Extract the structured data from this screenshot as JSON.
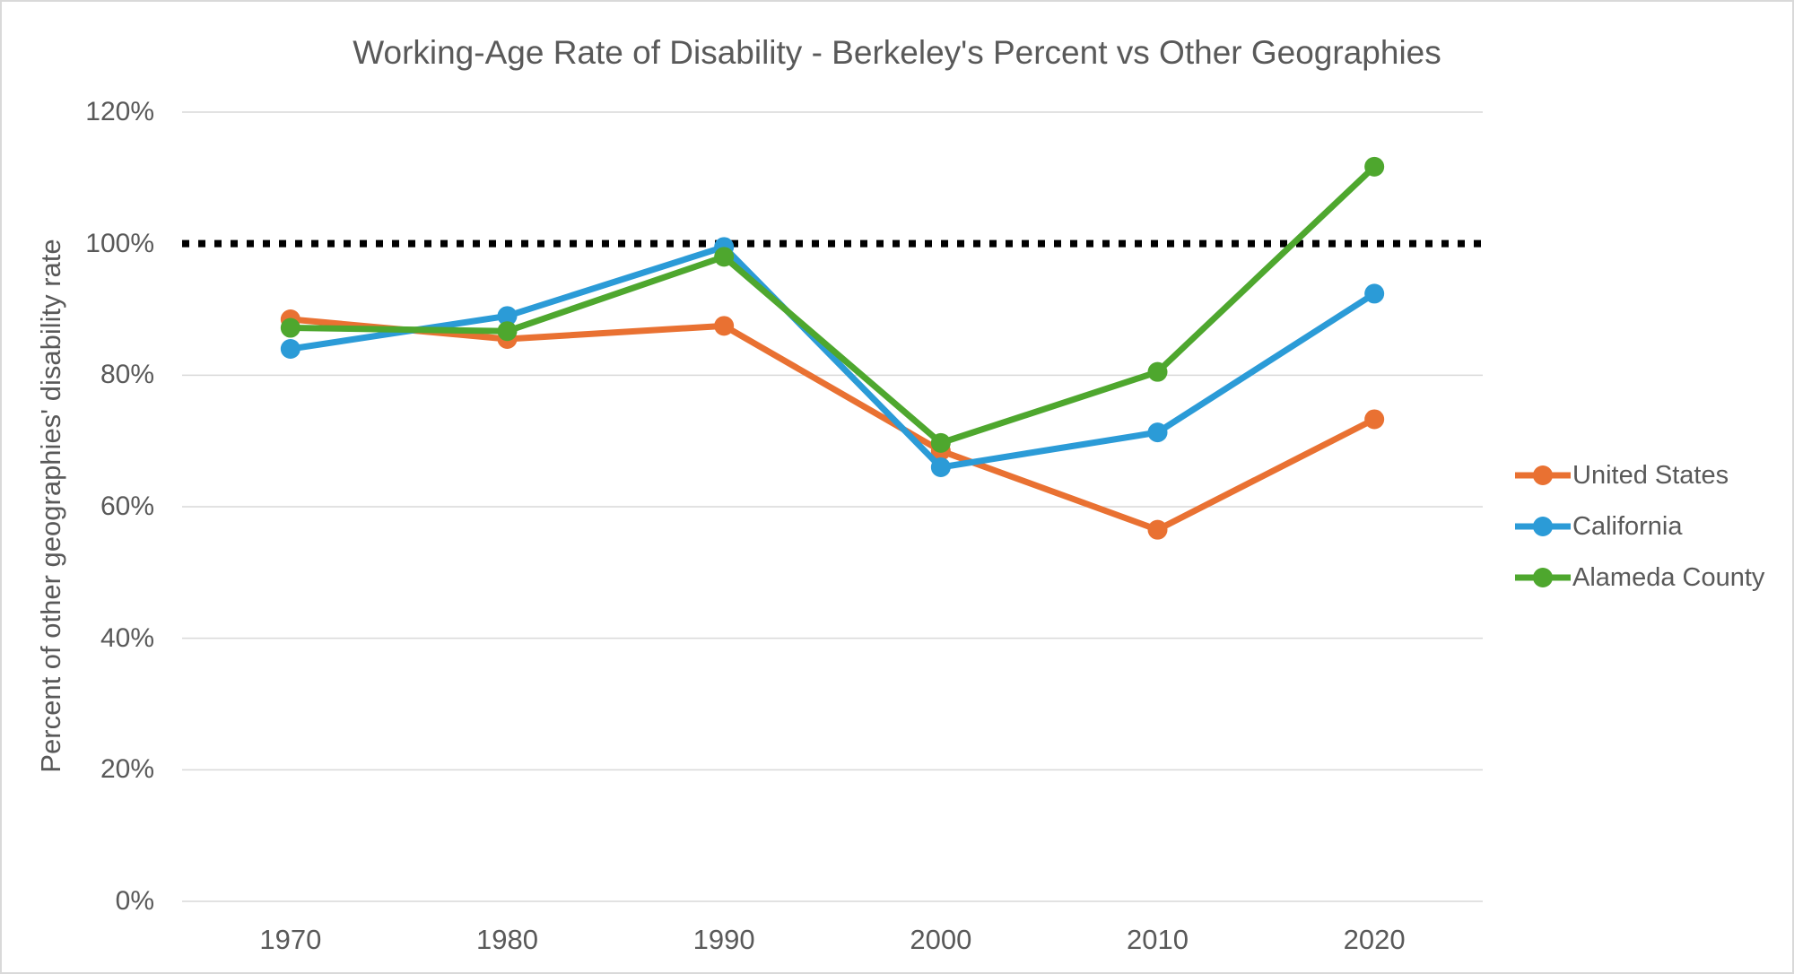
{
  "chart_data": {
    "type": "line",
    "title": "Working-Age Rate of Disability - Berkeley's Percent vs Other Geographies",
    "xlabel": "",
    "ylabel": "Percent of other geographies' disability rate",
    "categories": [
      "1970",
      "1980",
      "1990",
      "2000",
      "2010",
      "2020"
    ],
    "series": [
      {
        "name": "United States",
        "color": "#E97132",
        "values": [
          88.5,
          85.5,
          87.5,
          68.5,
          56.5,
          73.3
        ]
      },
      {
        "name": "California",
        "color": "#2B9BD7",
        "values": [
          84.0,
          89.0,
          99.5,
          66.0,
          71.3,
          92.4
        ]
      },
      {
        "name": "Alameda County",
        "color": "#4EA72E",
        "values": [
          87.2,
          86.7,
          98.0,
          69.7,
          80.5,
          111.7
        ]
      }
    ],
    "reference_line": {
      "value": 100,
      "style": "dotted",
      "color": "#000000"
    },
    "ylim": [
      0,
      120
    ],
    "yticks": [
      0,
      20,
      40,
      60,
      80,
      100,
      120
    ],
    "ytick_labels": [
      "0%",
      "20%",
      "40%",
      "60%",
      "80%",
      "100%",
      "120%"
    ],
    "grid": "horizontal",
    "gridline_color": "#d9d9d9",
    "legend_position": "right",
    "marker": "circle",
    "text_color": "#595959"
  }
}
